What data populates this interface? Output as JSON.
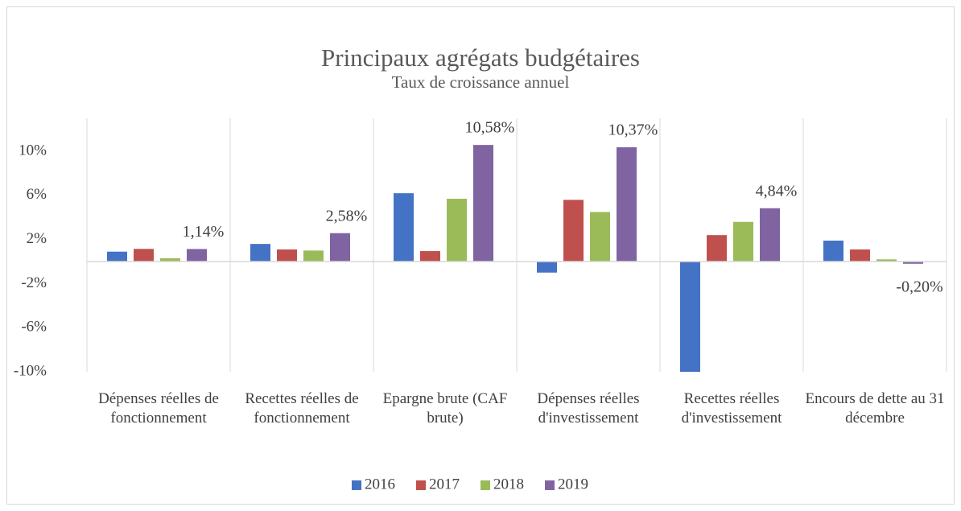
{
  "chart_data": {
    "type": "bar",
    "title": "Principaux agrégats budgétaires",
    "subtitle": "Taux de croissance annuel",
    "categories": [
      "Dépenses réelles de fonctionnement",
      "Recettes réelles de fonctionnement",
      "Epargne brute (CAF brute)",
      "Dépenses réelles d'investissement",
      "Recettes réelles d'investissement",
      "Encours de dette au 31 décembre"
    ],
    "series": [
      {
        "name": "2016",
        "color": "#4472c4",
        "values": [
          0.9,
          1.6,
          6.2,
          -1.0,
          -10.0,
          1.9
        ]
      },
      {
        "name": "2017",
        "color": "#c0504d",
        "values": [
          1.15,
          1.1,
          0.95,
          5.6,
          2.4,
          1.1
        ]
      },
      {
        "name": "2018",
        "color": "#9bbb59",
        "values": [
          0.3,
          1.0,
          5.7,
          4.5,
          3.6,
          0.2
        ]
      },
      {
        "name": "2019",
        "color": "#8064a2",
        "values": [
          1.14,
          2.58,
          10.58,
          10.37,
          4.84,
          -0.2
        ],
        "value_labels": [
          "1,14%",
          "2,58%",
          "10,58%",
          "10,37%",
          "4,84%",
          "-0,20%"
        ]
      }
    ],
    "ylim": [
      -10,
      13
    ],
    "yticks": [
      {
        "value": -10,
        "label": "-10%"
      },
      {
        "value": -6,
        "label": "-6%"
      },
      {
        "value": -2,
        "label": "-2%"
      },
      {
        "value": 2,
        "label": "2%"
      },
      {
        "value": 6,
        "label": "6%"
      },
      {
        "value": 10,
        "label": "10%"
      }
    ],
    "grid": "vertical",
    "legend": "bottom"
  }
}
